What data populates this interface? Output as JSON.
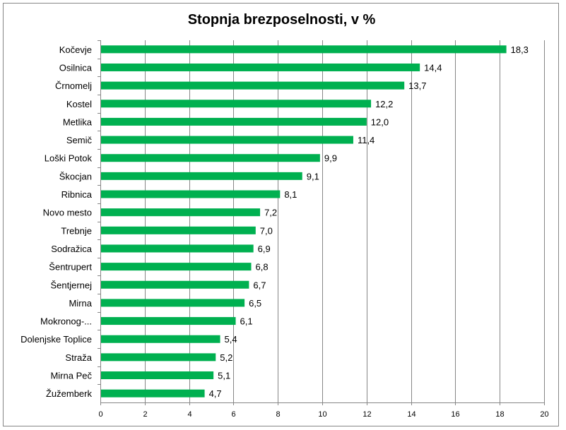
{
  "chart_data": {
    "type": "bar",
    "orientation": "horizontal",
    "title": "Stopnja brezposelnosti, v %",
    "categories": [
      "Kočevje",
      "Osilnica",
      "Črnomelj",
      "Kostel",
      "Metlika",
      "Semič",
      "Loški Potok",
      "Škocjan",
      "Ribnica",
      "Novo mesto",
      "Trebnje",
      "Sodražica",
      "Šentrupert",
      "Šentjernej",
      "Mirna",
      "Mokronog-...",
      "Dolenjske Toplice",
      "Straža",
      "Mirna Peč",
      "Žužemberk"
    ],
    "values": [
      18.3,
      14.4,
      13.7,
      12.2,
      12.0,
      11.4,
      9.9,
      9.1,
      8.1,
      7.2,
      7.0,
      6.9,
      6.8,
      6.7,
      6.5,
      6.1,
      5.4,
      5.2,
      5.1,
      4.7
    ],
    "value_labels": [
      "18,3",
      "14,4",
      "13,7",
      "12,2",
      "12,0",
      "11,4",
      "9,9",
      "9,1",
      "8,1",
      "7,2",
      "7,0",
      "6,9",
      "6,8",
      "6,7",
      "6,5",
      "6,1",
      "5,4",
      "5,2",
      "5,1",
      "4,7"
    ],
    "x_ticks": [
      "0",
      "2",
      "4",
      "6",
      "8",
      "10",
      "12",
      "14",
      "16",
      "18",
      "20"
    ],
    "xlim": [
      0,
      20
    ],
    "xlabel": "",
    "ylabel": "",
    "grid": true,
    "bar_color": "#00b050",
    "grid_color": "#868686"
  }
}
